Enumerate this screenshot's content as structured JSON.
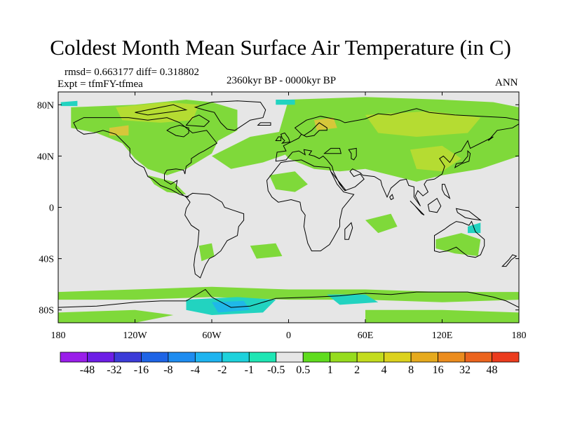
{
  "title": "Coldest Month Mean Surface Air Temperature (in C)",
  "stats": "rmsd= 0.663177  diff= 0.318802",
  "expt": "Expt = tfmFY-tfmea",
  "period": "2360kyr BP - 0000kyr BP",
  "season": "ANN",
  "colors": {
    "background_ocean": "#e6e6e6",
    "positive_main": "#7fd93a",
    "positive_high": "#b5dc32",
    "positive_hot": "#d6c73a",
    "negative_main": "#22d3c0",
    "negative_deep": "#1fb8e8",
    "coast": "#000000"
  },
  "map": {
    "projection": "cylindrical-equidistant",
    "lon_range": [
      -180,
      180
    ],
    "lat_range": [
      -90,
      90
    ],
    "y_ticks": [
      {
        "lat": 80,
        "label": "80N"
      },
      {
        "lat": 40,
        "label": "40N"
      },
      {
        "lat": 0,
        "label": "0"
      },
      {
        "lat": -40,
        "label": "40S"
      },
      {
        "lat": -80,
        "label": "80S"
      }
    ],
    "x_ticks": [
      {
        "lon": -180,
        "label": "180"
      },
      {
        "lon": -120,
        "label": "120W"
      },
      {
        "lon": -60,
        "label": "60W"
      },
      {
        "lon": 0,
        "label": "0"
      },
      {
        "lon": 60,
        "label": "60E"
      },
      {
        "lon": 120,
        "label": "120E"
      },
      {
        "lon": 180,
        "label": "180"
      }
    ]
  },
  "colorbar": {
    "colors": [
      "#9a1eea",
      "#6d1ee6",
      "#3c3cd8",
      "#1e64e6",
      "#1e8cf0",
      "#1eb4f0",
      "#1ed2dc",
      "#1ee6b4",
      "#e6e6e6",
      "#5fdc1e",
      "#96dc1e",
      "#c3dc1e",
      "#dcd21e",
      "#e6aa1e",
      "#eb8c1e",
      "#eb641e",
      "#eb3c1e"
    ],
    "labels": [
      "-48",
      "-32",
      "-16",
      "-8",
      "-4",
      "-2",
      "-1",
      "-0.5",
      "0.5",
      "1",
      "2",
      "4",
      "8",
      "16",
      "32",
      "48"
    ]
  }
}
